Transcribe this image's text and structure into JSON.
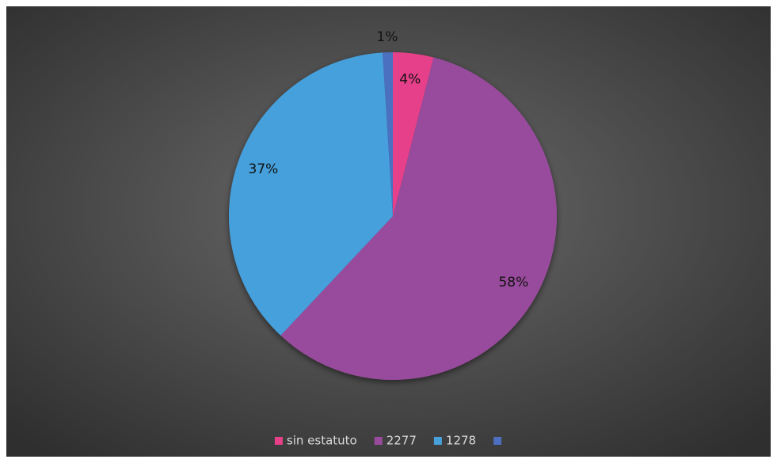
{
  "chart_data": {
    "type": "pie",
    "categories": [
      "sin estatuto",
      "2277",
      "1278",
      null
    ],
    "values": [
      4,
      58,
      37,
      1
    ],
    "value_labels": [
      "4%",
      "58%",
      "37%",
      "1%"
    ],
    "colors": [
      "#e6408a",
      "#984b9c",
      "#45a0dc",
      "#4c70bf"
    ],
    "legend": "bottom"
  }
}
